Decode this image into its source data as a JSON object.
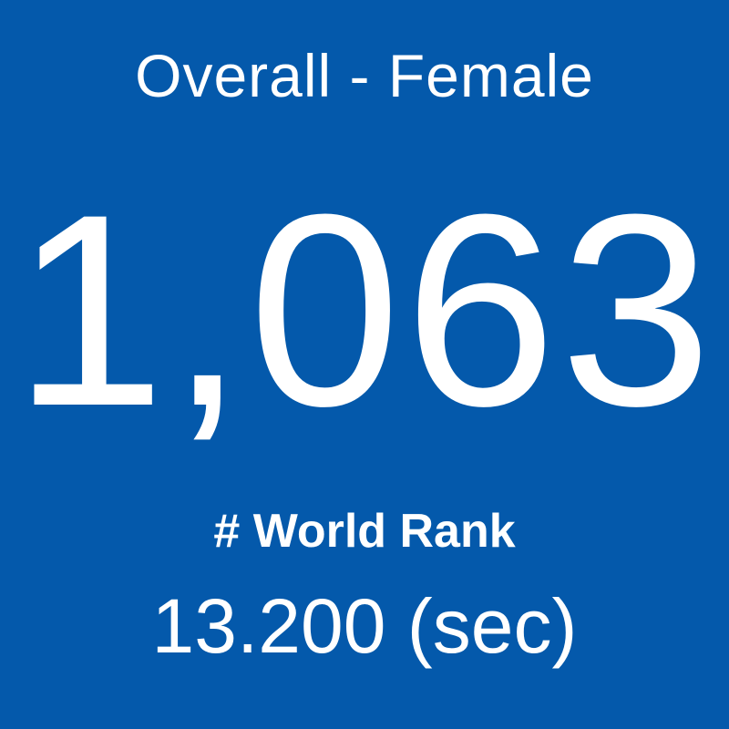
{
  "tile": {
    "title": "Overall - Female",
    "value": "1,063",
    "label": "# World Rank",
    "time": "13.200 (sec)"
  }
}
